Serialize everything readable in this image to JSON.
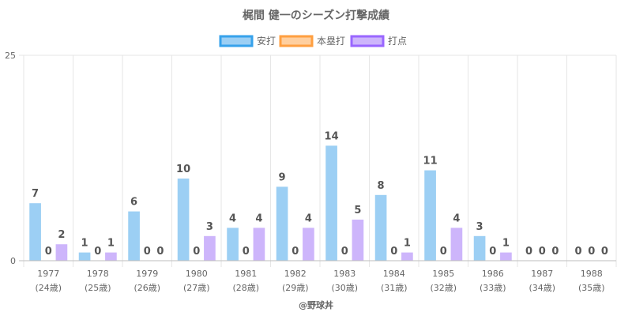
{
  "chart_data": {
    "type": "bar",
    "title": "梶間 健一のシーズン打撃成績",
    "categories": [
      "1977",
      "1978",
      "1979",
      "1980",
      "1981",
      "1982",
      "1983",
      "1984",
      "1985",
      "1986",
      "1987",
      "1988"
    ],
    "ages": [
      "(24歳)",
      "(25歳)",
      "(26歳)",
      "(27歳)",
      "(28歳)",
      "(29歳)",
      "(30歳)",
      "(31歳)",
      "(32歳)",
      "(33歳)",
      "(34歳)",
      "(35歳)"
    ],
    "series": [
      {
        "name": "安打",
        "fill": "#9ccff4",
        "stroke": "#36a2eb",
        "values": [
          7,
          1,
          6,
          10,
          4,
          9,
          14,
          8,
          11,
          3,
          0,
          0
        ]
      },
      {
        "name": "本塁打",
        "fill": "#ffcf9f",
        "stroke": "#ff9f40",
        "values": [
          0,
          0,
          0,
          0,
          0,
          0,
          0,
          0,
          0,
          0,
          0,
          0
        ]
      },
      {
        "name": "打点",
        "fill": "#cdb5fb",
        "stroke": "#9966ff",
        "values": [
          2,
          1,
          0,
          3,
          4,
          4,
          5,
          1,
          4,
          1,
          0,
          0
        ]
      }
    ],
    "ylim": [
      0,
      25
    ],
    "yticks": [
      "0",
      "25"
    ],
    "grid": true,
    "legend": "top"
  },
  "credit": "@野球丼"
}
